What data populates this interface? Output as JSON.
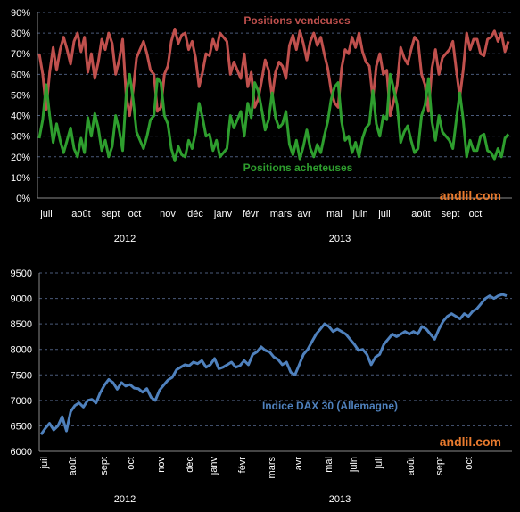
{
  "chart_data": [
    {
      "type": "line",
      "ylim": [
        0,
        90
      ],
      "yticks": [
        "0%",
        "10%",
        "20%",
        "30%",
        "40%",
        "50%",
        "60%",
        "70%",
        "80%",
        "90%"
      ],
      "xticks": [
        "juil",
        "août",
        "sept",
        "oct",
        "nov",
        "déc",
        "janv",
        "févr",
        "mars",
        "avr",
        "mai",
        "juin",
        "juil",
        "août",
        "sept",
        "oct"
      ],
      "years": [
        "2012",
        "2013"
      ],
      "grid": "horizontal dashed",
      "watermark": "andlil.com",
      "series": [
        {
          "name": "Positions vendeuses",
          "color": "#c0504d",
          "values": [
            70,
            60,
            43,
            61,
            73,
            62,
            72,
            78,
            72,
            65,
            76,
            80,
            71,
            78,
            61,
            70,
            58,
            66,
            77,
            72,
            80,
            75,
            60,
            67,
            77,
            50,
            40,
            52,
            68,
            72,
            76,
            70,
            62,
            60,
            42,
            44,
            60,
            64,
            76,
            82,
            75,
            79,
            80,
            72,
            76,
            68,
            54,
            61,
            70,
            69,
            77,
            72,
            80,
            78,
            76,
            60,
            66,
            62,
            58,
            70,
            54,
            61,
            44,
            48,
            57,
            67,
            62,
            49,
            61,
            66,
            64,
            58,
            74,
            79,
            72,
            81,
            75,
            67,
            76,
            80,
            74,
            78,
            70,
            63,
            52,
            46,
            44,
            63,
            72,
            70,
            78,
            73,
            80,
            71,
            66,
            64,
            48,
            64,
            70,
            60,
            62,
            40,
            47,
            55,
            73,
            68,
            65,
            72,
            78,
            76,
            60,
            55,
            42,
            63,
            72,
            60,
            68,
            70,
            72,
            76,
            62,
            49,
            62,
            80,
            72,
            77,
            77,
            70,
            69,
            77,
            78,
            81,
            76,
            80,
            71,
            76
          ]
        },
        {
          "name": "Positions acheteuses",
          "color": "#2e9e2e",
          "values": [
            29,
            38,
            55,
            40,
            27,
            36,
            28,
            22,
            28,
            34,
            24,
            20,
            29,
            22,
            39,
            30,
            41,
            34,
            23,
            28,
            20,
            25,
            40,
            33,
            23,
            50,
            60,
            48,
            32,
            28,
            24,
            30,
            38,
            40,
            58,
            56,
            40,
            36,
            24,
            18,
            25,
            21,
            20,
            28,
            24,
            32,
            46,
            39,
            30,
            31,
            23,
            28,
            20,
            22,
            24,
            40,
            34,
            38,
            42,
            30,
            46,
            39,
            56,
            52,
            43,
            33,
            38,
            51,
            39,
            34,
            36,
            42,
            26,
            21,
            28,
            19,
            25,
            33,
            24,
            20,
            26,
            22,
            30,
            37,
            48,
            54,
            56,
            37,
            28,
            30,
            22,
            27,
            20,
            29,
            34,
            36,
            52,
            36,
            30,
            40,
            38,
            60,
            53,
            45,
            27,
            32,
            35,
            28,
            22,
            24,
            40,
            45,
            58,
            37,
            28,
            40,
            32,
            30,
            28,
            24,
            38,
            51,
            38,
            20,
            28,
            23,
            23,
            30,
            31,
            23,
            22,
            19,
            24,
            20,
            29,
            31
          ]
        }
      ]
    },
    {
      "type": "line",
      "ylim": [
        6000,
        9500
      ],
      "yticks": [
        "6000",
        "6500",
        "7000",
        "7500",
        "8000",
        "8500",
        "9000",
        "9500"
      ],
      "xticks": [
        "juil",
        "août",
        "sept",
        "oct",
        "nov",
        "déc",
        "janv",
        "févr",
        "mars",
        "avr",
        "mai",
        "juin",
        "juil",
        "août",
        "sept",
        "oct"
      ],
      "years": [
        "2012",
        "2013"
      ],
      "grid": "horizontal dashed",
      "watermark": "andlil.com",
      "series": [
        {
          "name": "Indice DAX 30 (Allemagne)",
          "color": "#4f81bd",
          "values": [
            6330,
            6450,
            6550,
            6420,
            6500,
            6680,
            6400,
            6780,
            6900,
            6950,
            6870,
            7000,
            7020,
            6950,
            7150,
            7300,
            7410,
            7350,
            7220,
            7350,
            7280,
            7310,
            7240,
            7230,
            7160,
            7230,
            7060,
            7000,
            7200,
            7300,
            7400,
            7450,
            7600,
            7650,
            7700,
            7680,
            7750,
            7720,
            7780,
            7650,
            7700,
            7820,
            7620,
            7650,
            7700,
            7750,
            7650,
            7680,
            7780,
            7700,
            7900,
            7950,
            8050,
            7980,
            7950,
            7850,
            7800,
            7700,
            7750,
            7550,
            7500,
            7700,
            7900,
            8000,
            8150,
            8300,
            8400,
            8500,
            8450,
            8350,
            8400,
            8350,
            8300,
            8200,
            8100,
            7980,
            8000,
            7900,
            7700,
            7850,
            7900,
            8100,
            8200,
            8300,
            8250,
            8300,
            8350,
            8300,
            8350,
            8300,
            8450,
            8400,
            8300,
            8200,
            8400,
            8550,
            8650,
            8700,
            8650,
            8600,
            8700,
            8650,
            8750,
            8800,
            8900,
            9000,
            9050,
            9000,
            9050,
            9080,
            9050
          ]
        }
      ]
    }
  ]
}
